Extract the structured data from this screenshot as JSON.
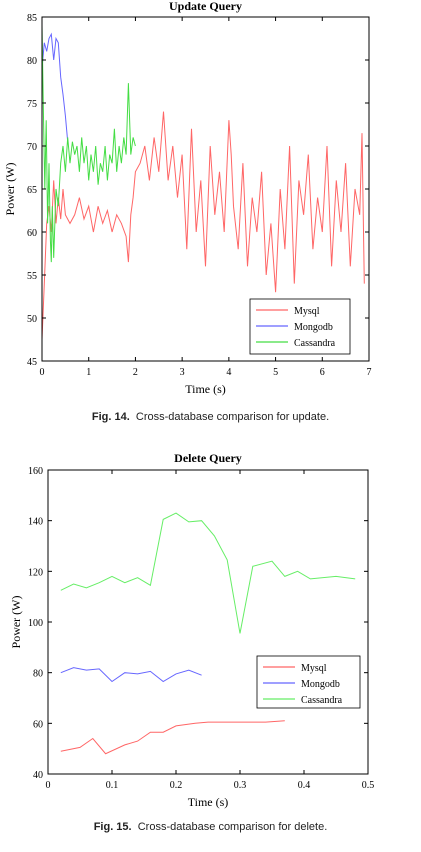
{
  "figures": [
    {
      "caption_label": "Fig. 14.",
      "caption_text": "Cross-database comparison for update."
    },
    {
      "caption_label": "Fig. 15.",
      "caption_text": "Cross-database comparison for delete."
    }
  ],
  "chart_data": [
    {
      "type": "line",
      "title": "Update Query",
      "xlabel": "Time (s)",
      "ylabel": "Power (W)",
      "xlim": [
        0,
        7
      ],
      "ylim": [
        45,
        85
      ],
      "xticks": [
        0,
        1,
        2,
        3,
        4,
        5,
        6,
        7
      ],
      "yticks": [
        45,
        50,
        55,
        60,
        65,
        70,
        75,
        80,
        85
      ],
      "grid": false,
      "legend_position": "bottom-right",
      "series": [
        {
          "name": "Mysql",
          "color": "#ff6666",
          "x": [
            0.0,
            0.05,
            0.1,
            0.15,
            0.2,
            0.25,
            0.3,
            0.35,
            0.4,
            0.45,
            0.5,
            0.6,
            0.7,
            0.8,
            0.9,
            1.0,
            1.1,
            1.2,
            1.3,
            1.4,
            1.5,
            1.6,
            1.7,
            1.8,
            1.85,
            1.9,
            1.95,
            2.0,
            2.1,
            2.2,
            2.3,
            2.4,
            2.5,
            2.6,
            2.7,
            2.8,
            2.9,
            3.0,
            3.1,
            3.2,
            3.3,
            3.4,
            3.5,
            3.6,
            3.7,
            3.8,
            3.9,
            4.0,
            4.05,
            4.1,
            4.2,
            4.3,
            4.4,
            4.5,
            4.6,
            4.7,
            4.8,
            4.9,
            5.0,
            5.1,
            5.2,
            5.3,
            5.4,
            5.5,
            5.6,
            5.7,
            5.8,
            5.9,
            6.0,
            6.1,
            6.2,
            6.3,
            6.4,
            6.5,
            6.6,
            6.7,
            6.8,
            6.85,
            6.9
          ],
          "y": [
            47.5,
            54,
            61,
            63,
            60,
            66,
            61,
            64,
            61.5,
            65,
            62,
            61,
            62,
            64,
            61.5,
            63,
            60,
            63,
            61,
            62.5,
            60,
            62,
            61,
            59.5,
            56.5,
            62,
            64,
            67,
            68,
            70,
            66,
            71,
            67,
            74,
            66,
            70,
            64,
            69,
            58,
            72,
            60,
            66,
            56,
            70,
            62,
            67,
            60,
            73,
            69,
            63,
            58,
            68,
            56,
            64,
            60,
            67,
            55,
            61,
            53,
            65,
            58,
            70,
            54,
            66,
            62,
            69,
            58,
            64,
            60,
            70,
            56,
            66,
            60,
            68,
            56,
            65,
            62,
            71.5,
            54
          ]
        },
        {
          "name": "Mongodb",
          "color": "#6666ff",
          "x": [
            0.0,
            0.05,
            0.1,
            0.15,
            0.2,
            0.25,
            0.3,
            0.35,
            0.4,
            0.45,
            0.5,
            0.55
          ],
          "y": [
            79,
            82,
            81,
            82.5,
            83,
            80,
            82.5,
            82,
            78,
            76,
            73.5,
            70.5
          ]
        },
        {
          "name": "Cassandra",
          "color": "#44dd44",
          "x": [
            0.0,
            0.03,
            0.06,
            0.09,
            0.12,
            0.15,
            0.18,
            0.2,
            0.22,
            0.25,
            0.3,
            0.35,
            0.4,
            0.45,
            0.5,
            0.55,
            0.6,
            0.65,
            0.7,
            0.75,
            0.8,
            0.85,
            0.9,
            0.95,
            1.0,
            1.05,
            1.1,
            1.15,
            1.2,
            1.25,
            1.3,
            1.35,
            1.4,
            1.45,
            1.5,
            1.55,
            1.6,
            1.65,
            1.7,
            1.75,
            1.8,
            1.85,
            1.9,
            1.95,
            2.0
          ],
          "y": [
            84,
            74,
            65,
            73,
            61,
            68,
            59,
            56.5,
            63,
            57,
            65,
            63,
            68,
            70,
            67,
            71,
            68,
            70.5,
            69,
            70,
            67,
            71,
            68,
            70,
            66,
            69,
            67,
            70,
            65.5,
            68,
            67,
            70,
            66,
            69,
            68,
            72,
            67,
            70,
            68,
            71,
            69,
            77.3,
            69,
            71,
            70
          ]
        }
      ]
    },
    {
      "type": "line",
      "title": "Delete Query",
      "xlabel": "Time (s)",
      "ylabel": "Power (W)",
      "xlim": [
        0,
        0.5
      ],
      "ylim": [
        40,
        160
      ],
      "xticks": [
        0,
        0.1,
        0.2,
        0.3,
        0.4,
        0.5
      ],
      "yticks": [
        40,
        60,
        80,
        100,
        120,
        140,
        160
      ],
      "grid": false,
      "legend_position": "bottom-right",
      "series": [
        {
          "name": "Mysql",
          "color": "#ff6666",
          "x": [
            0.02,
            0.05,
            0.07,
            0.09,
            0.12,
            0.14,
            0.16,
            0.18,
            0.2,
            0.23,
            0.25,
            0.28,
            0.31,
            0.34,
            0.37
          ],
          "y": [
            49,
            50.5,
            54,
            48,
            51.5,
            53,
            56.5,
            56.5,
            59,
            60,
            60.5,
            60.5,
            60.5,
            60.5,
            61
          ]
        },
        {
          "name": "Mongodb",
          "color": "#6666ff",
          "x": [
            0.02,
            0.04,
            0.06,
            0.08,
            0.1,
            0.12,
            0.14,
            0.16,
            0.18,
            0.2,
            0.22,
            0.24
          ],
          "y": [
            80,
            82,
            81,
            81.5,
            76.5,
            80,
            79.5,
            80.5,
            76.5,
            79.5,
            81,
            79
          ]
        },
        {
          "name": "Cassandra",
          "color": "#66ee66",
          "x": [
            0.02,
            0.04,
            0.06,
            0.08,
            0.1,
            0.12,
            0.14,
            0.16,
            0.18,
            0.2,
            0.22,
            0.24,
            0.26,
            0.28,
            0.3,
            0.32,
            0.35,
            0.37,
            0.39,
            0.41,
            0.45,
            0.48
          ],
          "y": [
            112.5,
            115,
            113.5,
            115.5,
            118,
            115.5,
            117.5,
            114.5,
            140.5,
            143,
            139.5,
            140,
            134,
            124.5,
            95.5,
            122,
            124,
            118,
            120,
            117,
            118,
            117
          ]
        }
      ]
    }
  ]
}
